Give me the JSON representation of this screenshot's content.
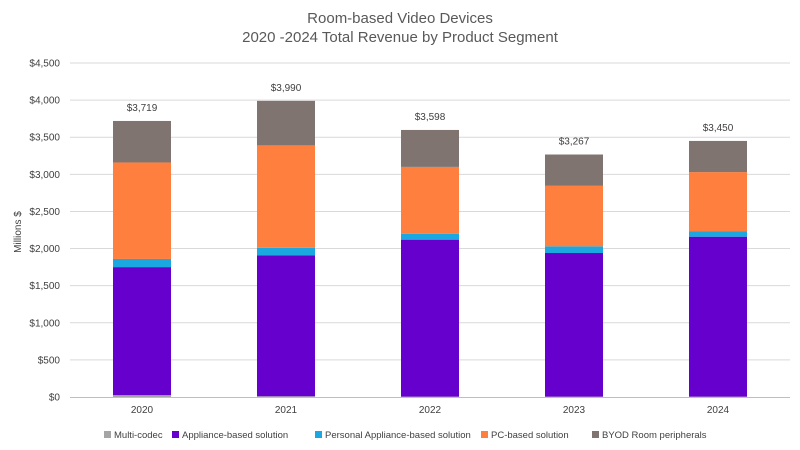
{
  "chart_data": {
    "type": "bar",
    "stacked": true,
    "title": "Room-based Video Devices",
    "subtitle": "2020 -2024 Total Revenue by Product Segment",
    "xlabel": "",
    "ylabel": "Millions $",
    "ylim": [
      0,
      4500
    ],
    "y_ticks": [
      "$0",
      "$500",
      "$1,000",
      "$1,500",
      "$2,000",
      "$2,500",
      "$3,000",
      "$3,500",
      "$4,000",
      "$4,500"
    ],
    "y_tick_values": [
      0,
      500,
      1000,
      1500,
      2000,
      2500,
      3000,
      3500,
      4000,
      4500
    ],
    "categories": [
      "2020",
      "2021",
      "2022",
      "2023",
      "2024"
    ],
    "totals": [
      "$3,719",
      "$3,990",
      "$3,598",
      "$3,267",
      "$3,450"
    ],
    "grid": true,
    "legend_position": "bottom",
    "series": [
      {
        "name": "Multi-codec",
        "color": "#a5a5a5",
        "values": [
          25,
          10,
          5,
          5,
          5
        ]
      },
      {
        "name": "Appliance-based solution",
        "color": "#6600cc",
        "values": [
          1725,
          1900,
          2115,
          1935,
          2155
        ]
      },
      {
        "name": "Personal Appliance-based solution",
        "color": "#1ba8e0",
        "values": [
          110,
          100,
          80,
          90,
          70
        ]
      },
      {
        "name": "PC-based solution",
        "color": "#ff7f3f",
        "values": [
          1300,
          1380,
          900,
          815,
          800
        ]
      },
      {
        "name": "BYOD Room peripherals",
        "color": "#7f7470",
        "values": [
          559,
          600,
          498,
          422,
          420
        ]
      }
    ]
  }
}
